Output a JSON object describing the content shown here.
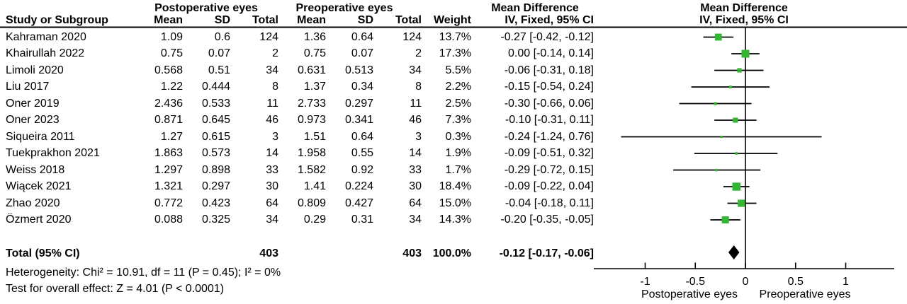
{
  "figure": {
    "group_headers": {
      "post": "Postoperative eyes",
      "pre": "Preoperative eyes",
      "md_left": "Mean Difference",
      "md_right": "Mean Difference"
    },
    "column_headers": {
      "study": "Study or Subgroup",
      "mean": "Mean",
      "sd": "SD",
      "total": "Total",
      "weight": "Weight",
      "iv_fixed": "IV, Fixed, 95% CI"
    },
    "footer": {
      "heterogeneity": "Heterogeneity: Chi² = 10.91, df = 11 (P = 0.45); I² = 0%",
      "overall_effect": "Test for overall effect: Z = 4.01 (P < 0.0001)"
    }
  },
  "chart_data": {
    "type": "forest",
    "effect_measure": "Mean Difference",
    "method": "IV, Fixed, 95% CI",
    "axis": {
      "ticks": [
        -1,
        -0.5,
        0,
        0.5,
        1
      ],
      "tick_labels": [
        "-1",
        "-0.5",
        "0",
        "0.5",
        "1"
      ],
      "xlim": [
        -1.52,
        1.48
      ],
      "favours_left": "Postoperative eyes",
      "favours_right": "Preoperative eyes"
    },
    "studies": [
      {
        "study": "Kahraman 2020",
        "mean_post": "1.09",
        "sd_post": "0.6",
        "total_post": "124",
        "mean_pre": "1.36",
        "sd_pre": "0.64",
        "total_pre": "124",
        "weight": "13.7%",
        "ci_text": "-0.27 [-0.42, -0.12]",
        "md": -0.27,
        "lo": -0.42,
        "hi": -0.12
      },
      {
        "study": "Khairullah 2022",
        "mean_post": "0.75",
        "sd_post": "0.07",
        "total_post": "2",
        "mean_pre": "0.75",
        "sd_pre": "0.07",
        "total_pre": "2",
        "weight": "17.3%",
        "ci_text": "0.00 [-0.14, 0.14]",
        "md": 0.0,
        "lo": -0.14,
        "hi": 0.14
      },
      {
        "study": "Limoli 2020",
        "mean_post": "0.568",
        "sd_post": "0.51",
        "total_post": "34",
        "mean_pre": "0.631",
        "sd_pre": "0.513",
        "total_pre": "34",
        "weight": "5.5%",
        "ci_text": "-0.06 [-0.31, 0.18]",
        "md": -0.06,
        "lo": -0.31,
        "hi": 0.18
      },
      {
        "study": "Liu 2017",
        "mean_post": "1.22",
        "sd_post": "0.444",
        "total_post": "8",
        "mean_pre": "1.37",
        "sd_pre": "0.34",
        "total_pre": "8",
        "weight": "2.2%",
        "ci_text": "-0.15 [-0.54, 0.24]",
        "md": -0.15,
        "lo": -0.54,
        "hi": 0.24
      },
      {
        "study": "Oner 2019",
        "mean_post": "2.436",
        "sd_post": "0.533",
        "total_post": "11",
        "mean_pre": "2.733",
        "sd_pre": "0.297",
        "total_pre": "11",
        "weight": "2.5%",
        "ci_text": "-0.30 [-0.66, 0.06]",
        "md": -0.3,
        "lo": -0.66,
        "hi": 0.06
      },
      {
        "study": "Oner 2023",
        "mean_post": "0.871",
        "sd_post": "0.645",
        "total_post": "46",
        "mean_pre": "0.973",
        "sd_pre": "0.341",
        "total_pre": "46",
        "weight": "7.3%",
        "ci_text": "-0.10 [-0.31, 0.11]",
        "md": -0.1,
        "lo": -0.31,
        "hi": 0.11
      },
      {
        "study": "Siqueira 2011",
        "mean_post": "1.27",
        "sd_post": "0.615",
        "total_post": "3",
        "mean_pre": "1.51",
        "sd_pre": "0.64",
        "total_pre": "3",
        "weight": "0.3%",
        "ci_text": "-0.24 [-1.24, 0.76]",
        "md": -0.24,
        "lo": -1.24,
        "hi": 0.76
      },
      {
        "study": "Tuekprakhon 2021",
        "mean_post": "1.863",
        "sd_post": "0.573",
        "total_post": "14",
        "mean_pre": "1.958",
        "sd_pre": "0.55",
        "total_pre": "14",
        "weight": "1.9%",
        "ci_text": "-0.09 [-0.51, 0.32]",
        "md": -0.09,
        "lo": -0.51,
        "hi": 0.32
      },
      {
        "study": "Weiss 2018",
        "mean_post": "1.297",
        "sd_post": "0.898",
        "total_post": "33",
        "mean_pre": "1.582",
        "sd_pre": "0.92",
        "total_pre": "33",
        "weight": "1.7%",
        "ci_text": "-0.29 [-0.72, 0.15]",
        "md": -0.29,
        "lo": -0.72,
        "hi": 0.15
      },
      {
        "study": "Wiącek 2021",
        "mean_post": "1.321",
        "sd_post": "0.297",
        "total_post": "30",
        "mean_pre": "1.41",
        "sd_pre": "0.224",
        "total_pre": "30",
        "weight": "18.4%",
        "ci_text": "-0.09 [-0.22, 0.04]",
        "md": -0.09,
        "lo": -0.22,
        "hi": 0.04
      },
      {
        "study": "Zhao 2020",
        "mean_post": "0.772",
        "sd_post": "0.423",
        "total_post": "64",
        "mean_pre": "0.809",
        "sd_pre": "0.427",
        "total_pre": "64",
        "weight": "15.0%",
        "ci_text": "-0.04 [-0.18, 0.11]",
        "md": -0.04,
        "lo": -0.18,
        "hi": 0.11
      },
      {
        "study": "Özmert 2020",
        "mean_post": "0.088",
        "sd_post": "0.325",
        "total_post": "34",
        "mean_pre": "0.29",
        "sd_pre": "0.31",
        "total_pre": "34",
        "weight": "14.3%",
        "ci_text": "-0.20 [-0.35, -0.05]",
        "md": -0.2,
        "lo": -0.35,
        "hi": -0.05
      }
    ],
    "total": {
      "label": "Total (95% CI)",
      "total_post": "403",
      "total_pre": "403",
      "weight": "100.0%",
      "ci_text": "-0.12 [-0.17, -0.06]",
      "md": -0.12,
      "lo": -0.17,
      "hi": -0.06
    },
    "colors": {
      "square": "#33B633",
      "line": "#000000",
      "diamond": "#000000"
    }
  }
}
